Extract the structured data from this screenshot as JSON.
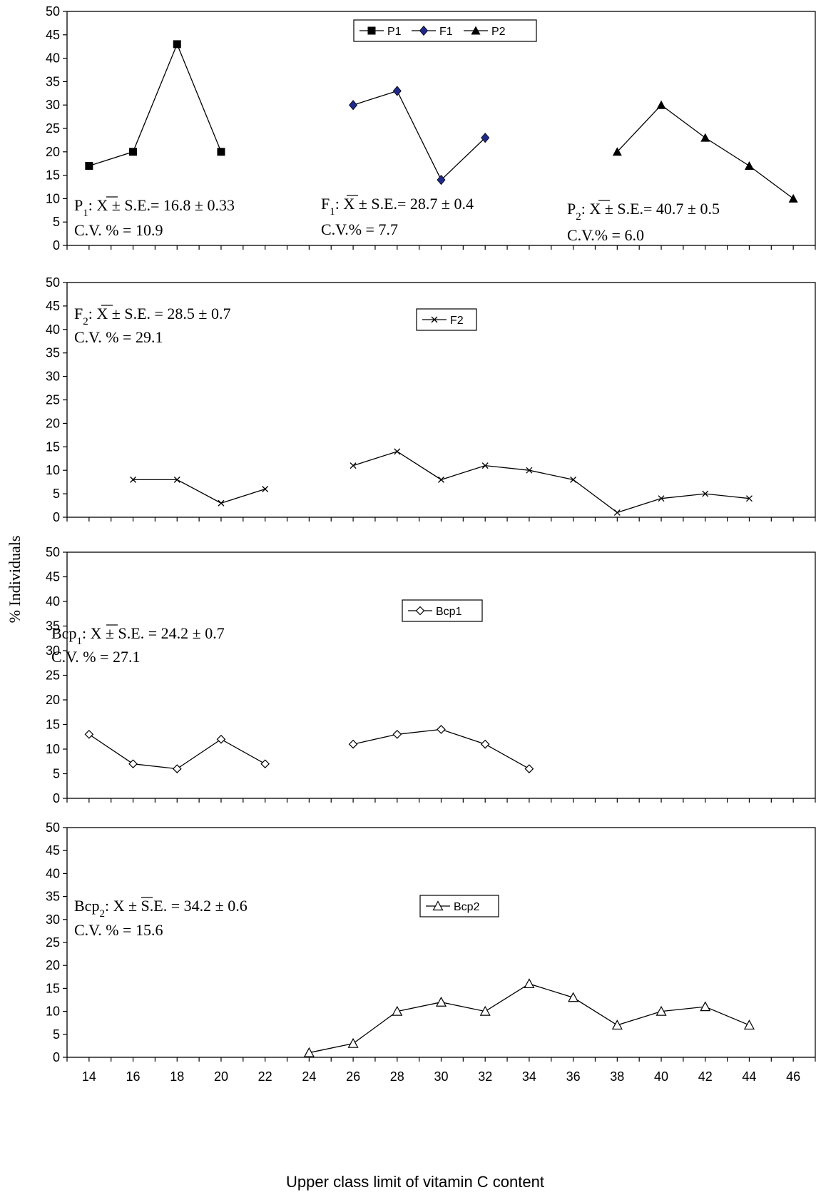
{
  "chart_data": [
    {
      "type": "line",
      "ylim": [
        0,
        50
      ],
      "yticks": [
        0,
        5,
        10,
        15,
        20,
        25,
        30,
        35,
        40,
        45,
        50
      ],
      "legend": "top-center",
      "series": [
        {
          "name": "P1",
          "marker": "square-filled",
          "color": "#000000",
          "x": [
            14,
            16,
            18,
            20
          ],
          "y": [
            17,
            20,
            43,
            20
          ]
        },
        {
          "name": "F1",
          "marker": "diamond-filled",
          "color": "#000000",
          "marker_color": "#1f2a8c",
          "x": [
            26,
            28,
            30,
            32
          ],
          "y": [
            30,
            33,
            14,
            23
          ]
        },
        {
          "name": "P2",
          "marker": "triangle-filled",
          "color": "#000000",
          "x": [
            38,
            40,
            42,
            44,
            46
          ],
          "y": [
            20,
            30,
            23,
            17,
            10
          ]
        }
      ],
      "annotations": [
        {
          "label": "P",
          "sub": "1",
          "sep": ":",
          "stat": " ± S.E.= 16.8 ± 0.33",
          "cv": "C.V. % = 10.9"
        },
        {
          "label": "F",
          "sub": "1",
          "sep": ":",
          "stat": " ± S.E.= 28.7 ± 0.4",
          "cv": "C.V.% = 7.7"
        },
        {
          "label": "P",
          "sub": "2",
          "sep": ":",
          "stat": " ± S.E.= 40.7 ± 0.5",
          "cv": "C.V.% = 6.0"
        }
      ]
    },
    {
      "type": "line",
      "ylim": [
        0,
        50
      ],
      "yticks": [
        0,
        5,
        10,
        15,
        20,
        25,
        30,
        35,
        40,
        45,
        50
      ],
      "legend": "top-center",
      "series": [
        {
          "name": "F2",
          "marker": "x",
          "color": "#000000",
          "x": [
            16,
            18,
            20,
            22,
            26,
            28,
            30,
            32,
            34,
            36,
            38,
            40,
            42,
            44
          ],
          "y": [
            8,
            8,
            3,
            6,
            11,
            14,
            8,
            11,
            10,
            8,
            1,
            4,
            5,
            4
          ],
          "segments": [
            [
              0,
              3
            ],
            [
              4,
              13
            ]
          ]
        }
      ],
      "annotations": [
        {
          "label": "F",
          "sub": "2",
          "sep": ":",
          "stat": " ± S.E. = 28.5 ± 0.7",
          "cv": "C.V. % = 29.1"
        }
      ]
    },
    {
      "type": "line",
      "ylim": [
        0,
        50
      ],
      "yticks": [
        0,
        5,
        10,
        15,
        20,
        25,
        30,
        35,
        40,
        45,
        50
      ],
      "legend": "top-center",
      "series": [
        {
          "name": "Bcp1",
          "marker": "diamond-open",
          "color": "#000000",
          "x": [
            14,
            16,
            18,
            20,
            22,
            26,
            28,
            30,
            32,
            34
          ],
          "y": [
            13,
            7,
            6,
            12,
            7,
            11,
            13,
            14,
            11,
            6
          ],
          "segments": [
            [
              0,
              4
            ],
            [
              5,
              9
            ]
          ]
        }
      ],
      "annotations": [
        {
          "label": "Bcp",
          "sub": "1",
          "sep": ":",
          "stat": " ± S.E. = 24.2 ± 0.7",
          "cv": "C.V. % = 27.1"
        }
      ]
    },
    {
      "type": "line",
      "ylim": [
        0,
        50
      ],
      "yticks": [
        0,
        5,
        10,
        15,
        20,
        25,
        30,
        35,
        40,
        45,
        50
      ],
      "xlabel": "Upper class limit of vitamin C content",
      "xticks": [
        14,
        16,
        18,
        20,
        22,
        24,
        26,
        28,
        30,
        32,
        34,
        36,
        38,
        40,
        42,
        44,
        46
      ],
      "legend": "top-center",
      "series": [
        {
          "name": "Bcp2",
          "marker": "triangle-open",
          "color": "#000000",
          "x": [
            24,
            26,
            28,
            30,
            32,
            34,
            36,
            38,
            40,
            42,
            44
          ],
          "y": [
            1,
            3,
            10,
            12,
            10,
            16,
            13,
            7,
            10,
            11,
            7
          ]
        }
      ],
      "annotations": [
        {
          "label": "Bcp",
          "sub": "2",
          "sep": ":",
          "stat": " ± S.E. = 34.2 ± 0.6",
          "cv": "C.V. % = 15.6"
        }
      ]
    }
  ],
  "shared": {
    "ylabel": "% Individuals",
    "mean_symbol": "X"
  }
}
